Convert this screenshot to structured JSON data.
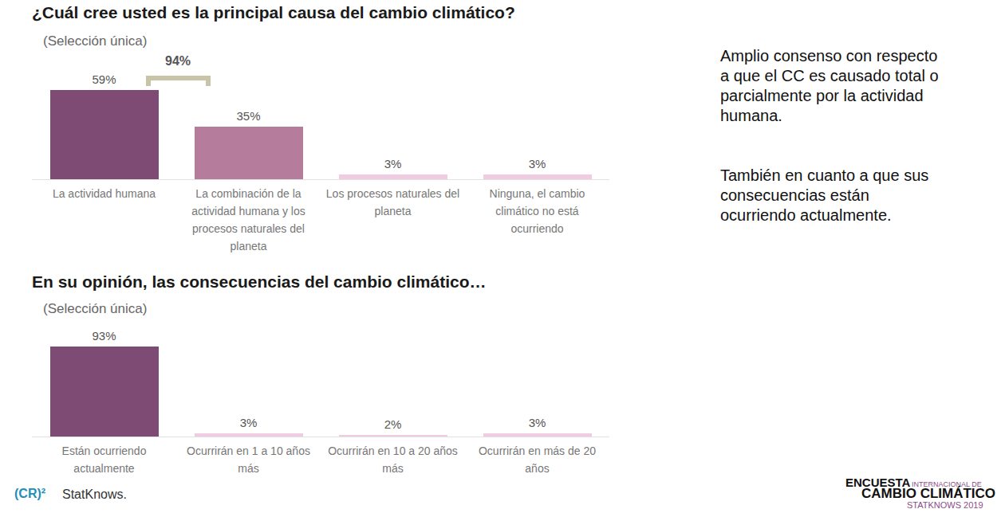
{
  "chart_data": [
    {
      "type": "bar",
      "title": "¿Cuál cree usted es la principal causa del cambio climático?",
      "subtitle": "(Selección única)",
      "categories": [
        "La actividad humana",
        "La combinación de la actividad humana y los procesos naturales del planeta",
        "Los procesos naturales del planeta",
        "Ninguna, el cambio climático no está ocurriendo"
      ],
      "values": [
        59,
        35,
        3,
        3
      ],
      "value_labels": [
        "59%",
        "35%",
        "3%",
        "3%"
      ],
      "colors": [
        "#7d4b74",
        "#b67c9c",
        "#f1cbe1",
        "#f1cbe1"
      ],
      "data_labels": true,
      "ylim": [
        0,
        59
      ],
      "grid": false,
      "tick_labels": "x",
      "annotations": [
        "94%"
      ]
    },
    {
      "type": "bar",
      "title": "En su opinión, las consecuencias del cambio climático…",
      "subtitle": "(Selección única)",
      "categories": [
        "Están ocurriendo actualmente",
        "Ocurrirán en 1 a 10 años más",
        "Ocurrirán en 10 a 20 años más",
        "Ocurrirán en más de 20 años"
      ],
      "values": [
        93,
        3,
        2,
        3
      ],
      "value_labels": [
        "93%",
        "3%",
        "2%",
        "3%"
      ],
      "colors": [
        "#7d4b74",
        "#f1cbe1",
        "#f1cbe1",
        "#f1cbe1"
      ],
      "data_labels": true,
      "ylim": [
        0,
        93
      ],
      "grid": false,
      "tick_labels": "x"
    }
  ],
  "side_notes": [
    "Amplio consenso con respecto a que el CC es causado total o parcialmente por la actividad humana.",
    "También en cuanto a que sus consecuencias están ocurriendo actualmente."
  ],
  "logos": [
    "(CR)²",
    "StatKnows."
  ],
  "footer": {
    "line1": "ENCUESTA",
    "line1_small": "INTERNACIONAL DE",
    "line2": "CAMBIO CLIMÁTICO",
    "line3": "STATKNOWS 2019"
  }
}
